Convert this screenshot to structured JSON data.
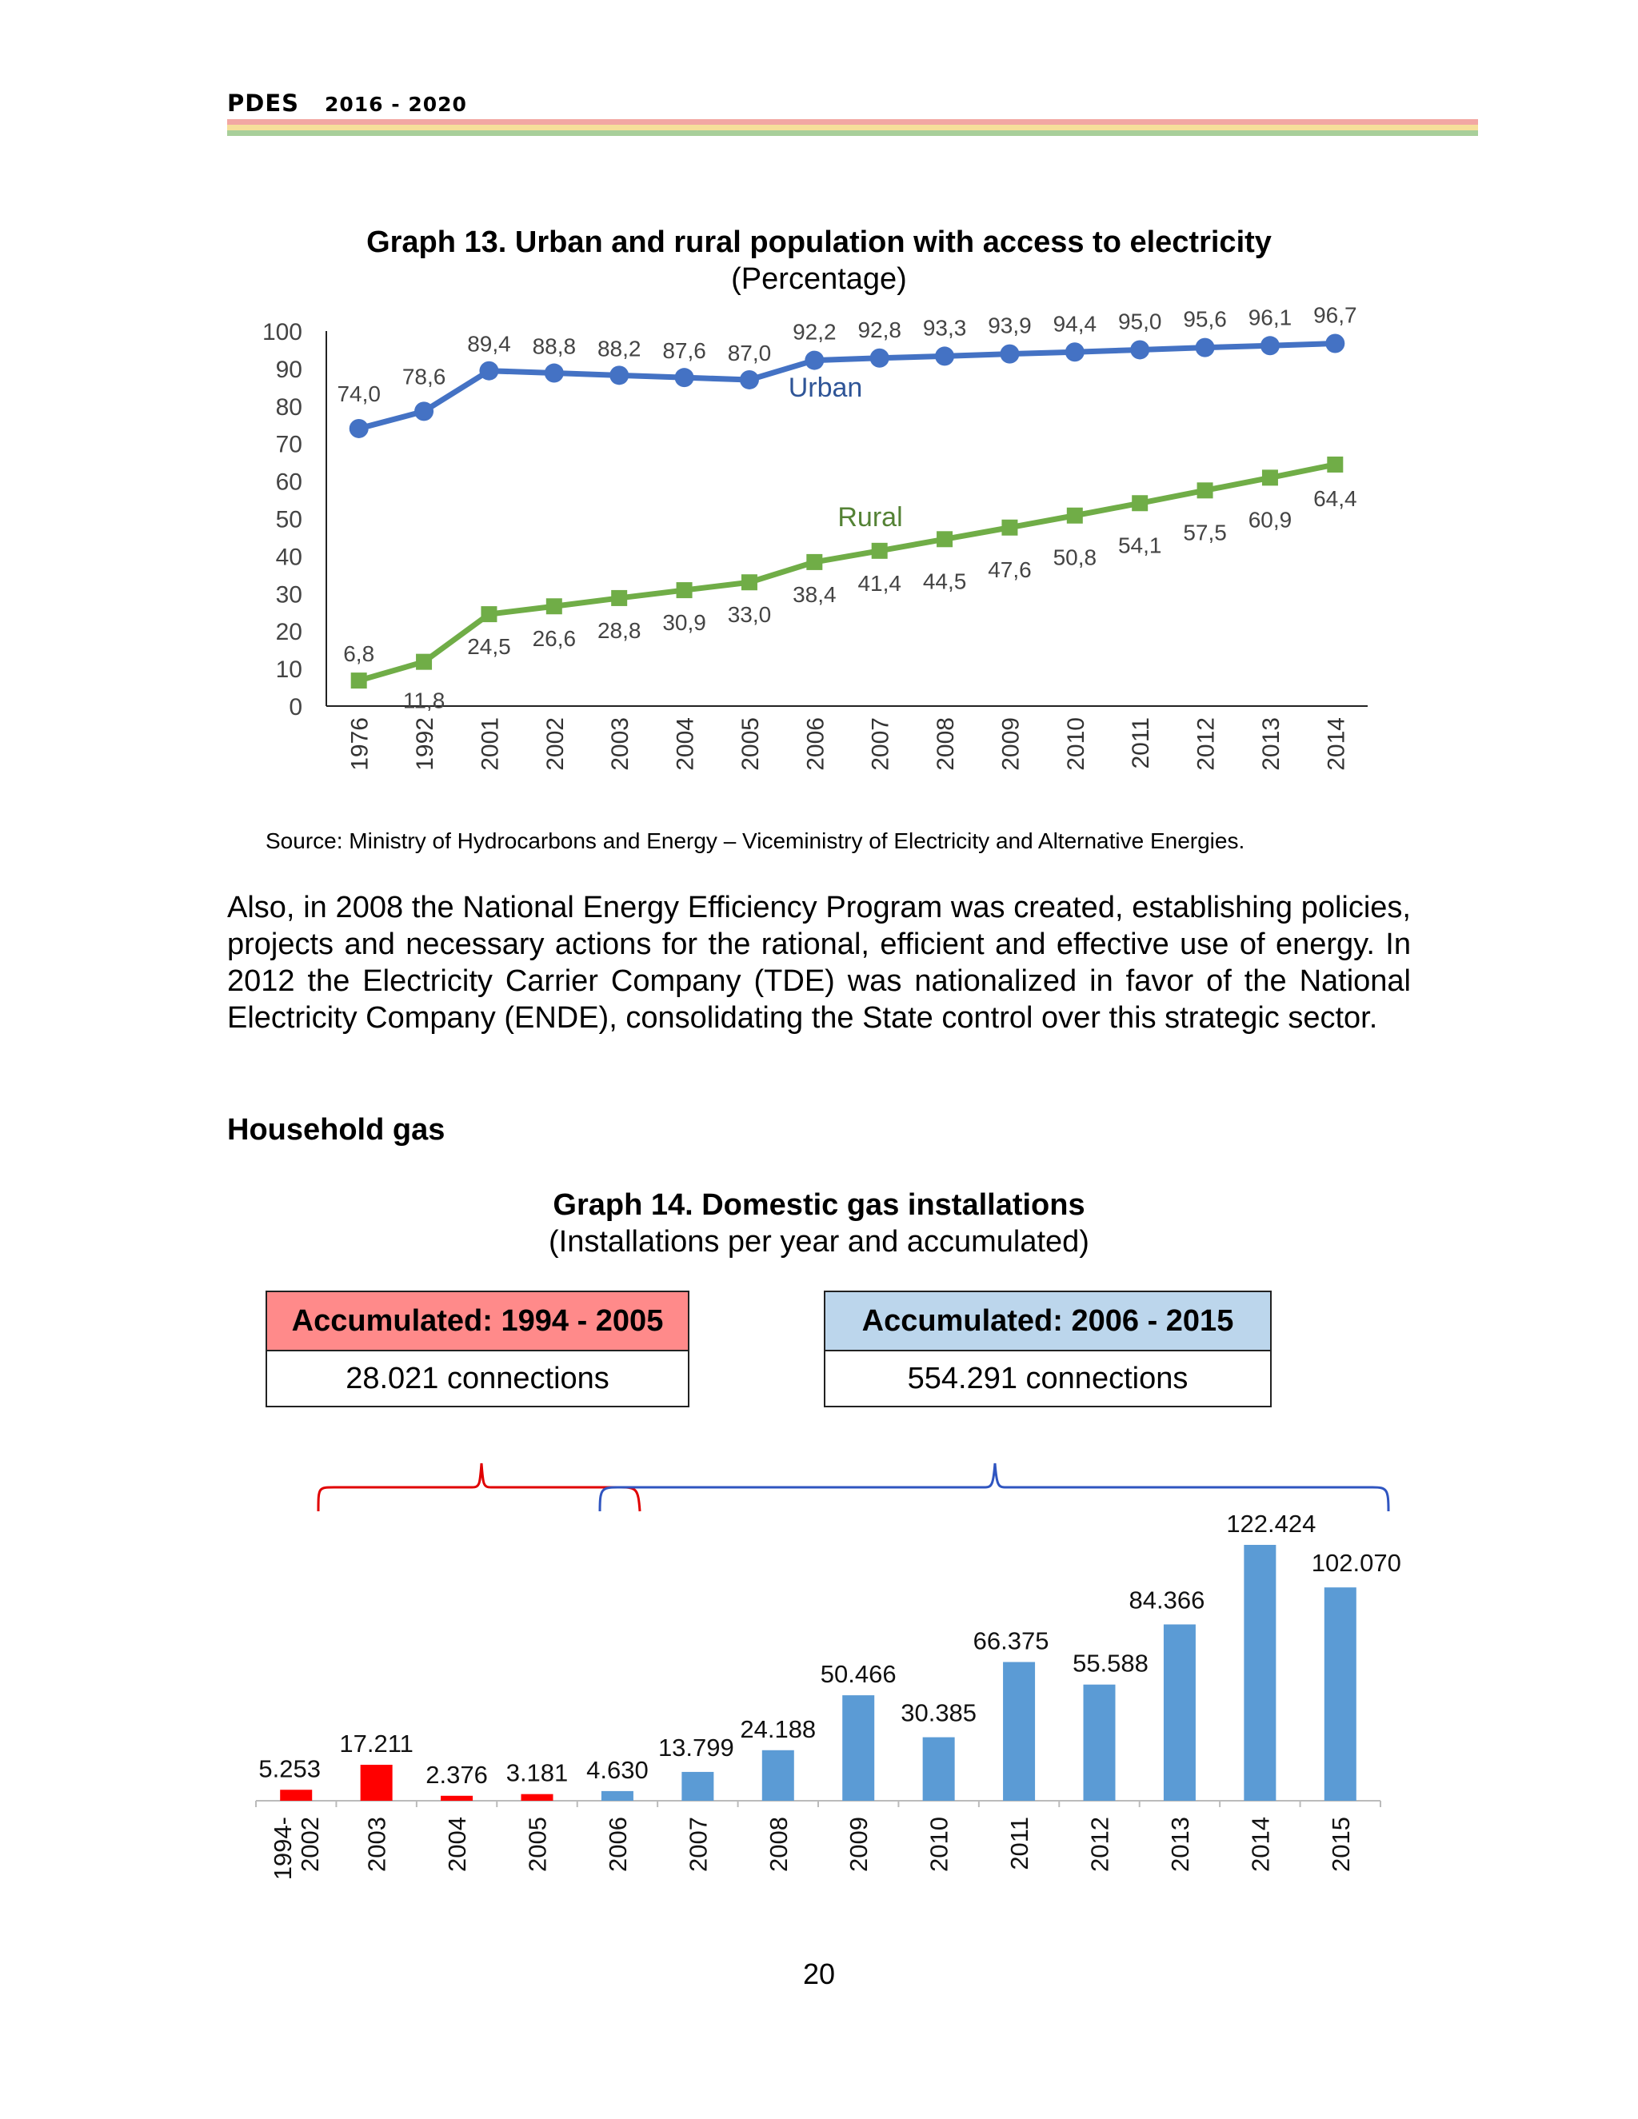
{
  "header": {
    "pdes": "PDES",
    "years": "2016 - 2020",
    "stripe_colors": [
      "#f2a7a3",
      "#f6df9a",
      "#a8cf9a"
    ]
  },
  "graph13": {
    "title": "Graph 13. Urban and rural population with access to electricity",
    "subtitle": "(Percentage)",
    "source": "Source: Ministry of Hydrocarbons and Energy – Viceministry of Electricity and Alternative Energies."
  },
  "paragraph": "Also, in 2008 the National Energy Efficiency Program was created, establishing policies, projects and necessary actions for the rational, efficient and effective use of energy. In 2012 the Electricity Carrier Company (TDE) was nationalized in favor of the National Electricity Company (ENDE), consolidating the State control over this strategic sector.",
  "household_heading": "Household gas",
  "graph14": {
    "title": "Graph 14. Domestic gas installations",
    "subtitle": "(Installations per year and accumulated)",
    "box1": {
      "header": "Accumulated: 1994 - 2005",
      "body": "28.021 connections"
    },
    "box2": {
      "header": "Accumulated: 2006 - 2015",
      "body": "554.291  connections"
    }
  },
  "page_number": "20",
  "chart_data": [
    {
      "type": "line",
      "title": "Graph 13. Urban and rural population with access to electricity",
      "subtitle": "(Percentage)",
      "x": [
        "1976",
        "1992",
        "2001",
        "2002",
        "2003",
        "2004",
        "2005",
        "2006",
        "2007",
        "2008",
        "2009",
        "2010",
        "2011",
        "2012",
        "2013",
        "2014"
      ],
      "yticks": [
        "0",
        "10",
        "20",
        "30",
        "40",
        "50",
        "60",
        "70",
        "80",
        "90",
        "100"
      ],
      "ylim": [
        0,
        100
      ],
      "grid": false,
      "series": [
        {
          "name": "Urban",
          "color": "#4472c4",
          "marker": "circle",
          "values": [
            74.0,
            78.6,
            89.4,
            88.8,
            88.2,
            87.6,
            87.0,
            92.2,
            92.8,
            93.3,
            93.9,
            94.4,
            95.0,
            95.6,
            96.1,
            96.7
          ],
          "labels": [
            "74,0",
            "78,6",
            "89,4",
            "88,8",
            "88,2",
            "87,6",
            "87,0",
            "92,2",
            "92,8",
            "93,3",
            "93,9",
            "94,4",
            "95,0",
            "95,6",
            "96,1",
            "96,7"
          ]
        },
        {
          "name": "Rural",
          "color": "#70ad47",
          "marker": "square",
          "values": [
            6.8,
            11.8,
            24.5,
            26.6,
            28.8,
            30.9,
            33.0,
            38.4,
            41.4,
            44.5,
            47.6,
            50.8,
            54.1,
            57.5,
            60.9,
            64.4
          ],
          "labels": [
            "6,8",
            "11,8",
            "24,5",
            "26,6",
            "28,8",
            "30,9",
            "33,0",
            "38,4",
            "41,4",
            "44,5",
            "47,6",
            "50,8",
            "54,1",
            "57,5",
            "60,9",
            "64,4"
          ]
        }
      ]
    },
    {
      "type": "bar",
      "title": "Graph 14. Domestic gas installations",
      "subtitle": "(Installations per year and accumulated)",
      "categories": [
        "1994-\n2002",
        "2003",
        "2004",
        "2005",
        "2006",
        "2007",
        "2008",
        "2009",
        "2010",
        "2011",
        "2012",
        "2013",
        "2014",
        "2015"
      ],
      "values": [
        5253,
        17211,
        2376,
        3181,
        4630,
        13799,
        24188,
        50466,
        30385,
        66375,
        55588,
        84366,
        122424,
        102070
      ],
      "labels": [
        "5.253",
        "17.211",
        "2.376",
        "3.181",
        "4.630",
        "13.799",
        "24.188",
        "50.466",
        "30.385",
        "66.375",
        "55.588",
        "84.366",
        "122.424",
        "102.070"
      ],
      "colors": [
        "#ff0000",
        "#ff0000",
        "#ff0000",
        "#ff0000",
        "#5b9bd5",
        "#5b9bd5",
        "#5b9bd5",
        "#5b9bd5",
        "#5b9bd5",
        "#5b9bd5",
        "#5b9bd5",
        "#5b9bd5",
        "#5b9bd5",
        "#5b9bd5"
      ],
      "bracket_colors": [
        "#e00000",
        "#2f55c0"
      ],
      "grid": false
    }
  ]
}
